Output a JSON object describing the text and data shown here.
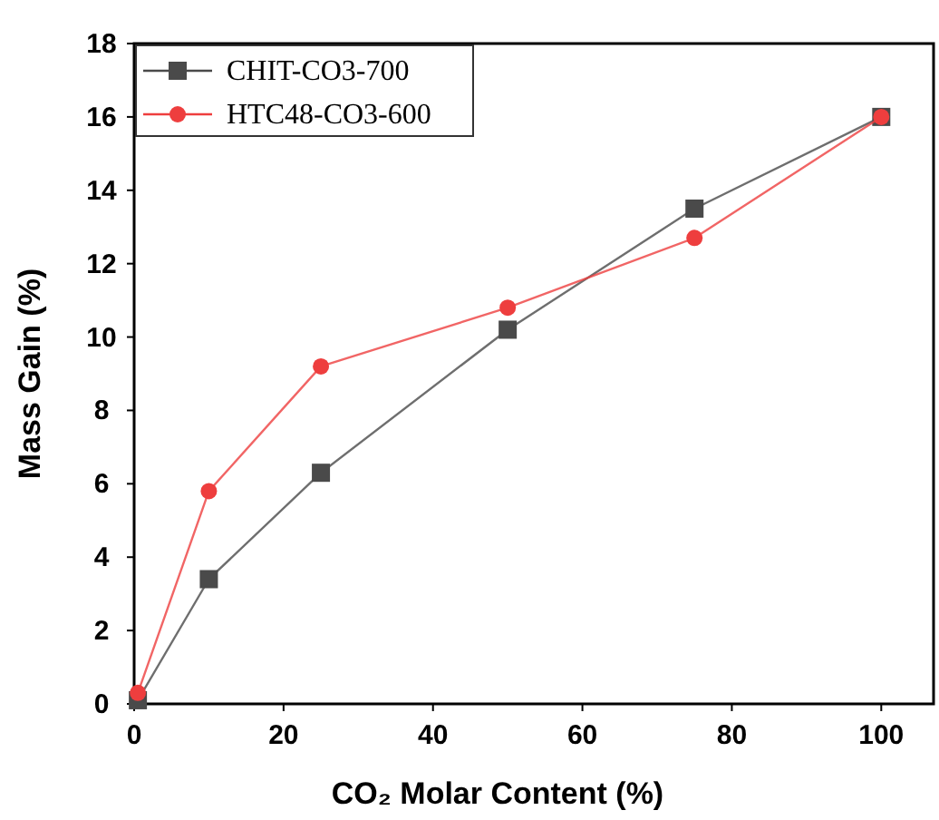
{
  "chart_data": {
    "type": "line",
    "xlabel": "CO₂ Molar Content (%)",
    "ylabel": "Mass Gain (%)",
    "x": [
      0.5,
      10,
      25,
      50,
      75,
      100
    ],
    "series": [
      {
        "name": "CHIT-CO3-700",
        "color": "#4a4a4a",
        "marker": "square",
        "values": [
          0.1,
          3.4,
          6.3,
          10.2,
          13.5,
          16
        ]
      },
      {
        "name": "HTC48-CO3-600",
        "color": "#ee3e3e",
        "marker": "circle",
        "values": [
          0.3,
          5.8,
          9.2,
          10.8,
          12.7,
          16
        ]
      }
    ],
    "xlim": [
      0,
      107
    ],
    "xticks": [
      0,
      20,
      40,
      60,
      80,
      100
    ],
    "ylim": [
      0,
      18
    ],
    "yticks": [
      0,
      2,
      4,
      6,
      8,
      10,
      12,
      14,
      16,
      18
    ],
    "grid": false,
    "legend": "top left",
    "line_style": "solid"
  }
}
